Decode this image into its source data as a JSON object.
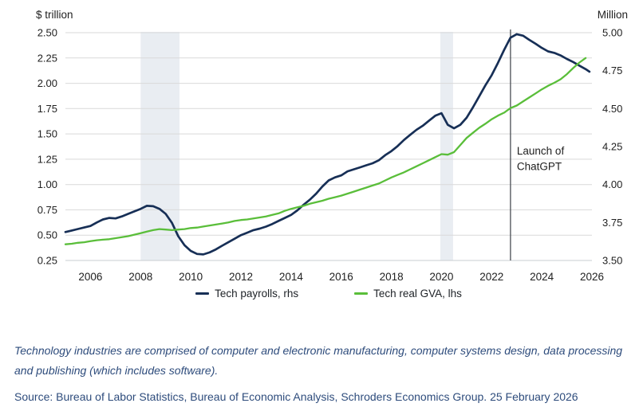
{
  "page": {
    "footnote": "Technology industries are comprised of computer and electronic manufacturing, computer systems design, data processing and publishing (which includes software).",
    "source": "Source: Bureau of Labor Statistics, Bureau of Economic Analysis, Schroders Economics Group. 25 February 2026"
  },
  "colors": {
    "navy_line": "#172f56",
    "green_line": "#5abe3a",
    "recession_band": "#e9edf2",
    "gridline": "#d9d9d9",
    "axis_line": "#c9cdd2",
    "annotation_line": "#4a4f55",
    "tick_text": "#212121",
    "note_text": "#2e4c7c"
  },
  "chart_data": {
    "type": "line",
    "title": "",
    "grid": true,
    "legend_position": "bottom",
    "left_axis": {
      "title": "$ trillion",
      "min": 0.25,
      "max": 2.5,
      "tick_step": 0.25,
      "ticks": [
        "2.50",
        "2.25",
        "2.00",
        "1.75",
        "1.50",
        "1.25",
        "1.00",
        "0.75",
        "0.50",
        "0.25"
      ]
    },
    "right_axis": {
      "title": "Million",
      "min": 3.5,
      "max": 5.0,
      "tick_step": 0.25,
      "ticks": [
        "5.00",
        "4.75",
        "4.50",
        "4.25",
        "4.00",
        "3.75",
        "3.50"
      ]
    },
    "x_axis": {
      "min": 2005,
      "max": 2026,
      "ticks": [
        2006,
        2008,
        2010,
        2012,
        2014,
        2016,
        2018,
        2020,
        2022,
        2024,
        2026
      ]
    },
    "recession_bands": [
      {
        "from": 2008.0,
        "to": 2009.55
      },
      {
        "from": 2019.95,
        "to": 2020.46
      }
    ],
    "annotation": {
      "x": 2022.75,
      "lines": [
        "Launch of",
        "ChatGPT"
      ]
    },
    "series": [
      {
        "name": "Tech payrolls, rhs",
        "axis": "right",
        "unit": "million",
        "points": [
          [
            2005.0,
            3.687
          ],
          [
            2005.25,
            3.697
          ],
          [
            2005.5,
            3.707
          ],
          [
            2005.75,
            3.717
          ],
          [
            2006.0,
            3.727
          ],
          [
            2006.25,
            3.75
          ],
          [
            2006.5,
            3.77
          ],
          [
            2006.75,
            3.78
          ],
          [
            2007.0,
            3.777
          ],
          [
            2007.25,
            3.79
          ],
          [
            2007.5,
            3.807
          ],
          [
            2007.75,
            3.823
          ],
          [
            2008.0,
            3.84
          ],
          [
            2008.25,
            3.86
          ],
          [
            2008.5,
            3.857
          ],
          [
            2008.75,
            3.84
          ],
          [
            2009.0,
            3.807
          ],
          [
            2009.25,
            3.747
          ],
          [
            2009.5,
            3.66
          ],
          [
            2009.75,
            3.6
          ],
          [
            2010.0,
            3.563
          ],
          [
            2010.25,
            3.543
          ],
          [
            2010.5,
            3.54
          ],
          [
            2010.75,
            3.553
          ],
          [
            2011.0,
            3.573
          ],
          [
            2011.25,
            3.597
          ],
          [
            2011.5,
            3.62
          ],
          [
            2011.75,
            3.643
          ],
          [
            2012.0,
            3.667
          ],
          [
            2012.25,
            3.683
          ],
          [
            2012.5,
            3.7
          ],
          [
            2012.75,
            3.71
          ],
          [
            2013.0,
            3.723
          ],
          [
            2013.25,
            3.74
          ],
          [
            2013.5,
            3.76
          ],
          [
            2013.75,
            3.78
          ],
          [
            2014.0,
            3.8
          ],
          [
            2014.25,
            3.83
          ],
          [
            2014.5,
            3.867
          ],
          [
            2014.75,
            3.9
          ],
          [
            2015.0,
            3.94
          ],
          [
            2015.25,
            3.987
          ],
          [
            2015.5,
            4.027
          ],
          [
            2015.75,
            4.047
          ],
          [
            2016.0,
            4.06
          ],
          [
            2016.25,
            4.087
          ],
          [
            2016.5,
            4.1
          ],
          [
            2016.75,
            4.113
          ],
          [
            2017.0,
            4.127
          ],
          [
            2017.25,
            4.14
          ],
          [
            2017.5,
            4.16
          ],
          [
            2017.75,
            4.193
          ],
          [
            2018.0,
            4.22
          ],
          [
            2018.25,
            4.253
          ],
          [
            2018.5,
            4.293
          ],
          [
            2018.75,
            4.327
          ],
          [
            2019.0,
            4.36
          ],
          [
            2019.25,
            4.387
          ],
          [
            2019.5,
            4.42
          ],
          [
            2019.75,
            4.453
          ],
          [
            2020.0,
            4.47
          ],
          [
            2020.25,
            4.393
          ],
          [
            2020.5,
            4.37
          ],
          [
            2020.75,
            4.393
          ],
          [
            2021.0,
            4.44
          ],
          [
            2021.25,
            4.507
          ],
          [
            2021.5,
            4.58
          ],
          [
            2021.75,
            4.653
          ],
          [
            2022.0,
            4.72
          ],
          [
            2022.25,
            4.8
          ],
          [
            2022.5,
            4.887
          ],
          [
            2022.75,
            4.967
          ],
          [
            2023.0,
            4.99
          ],
          [
            2023.25,
            4.98
          ],
          [
            2023.5,
            4.953
          ],
          [
            2023.75,
            4.927
          ],
          [
            2024.0,
            4.9
          ],
          [
            2024.25,
            4.877
          ],
          [
            2024.5,
            4.867
          ],
          [
            2024.75,
            4.85
          ],
          [
            2025.0,
            4.827
          ],
          [
            2025.25,
            4.807
          ],
          [
            2025.5,
            4.783
          ],
          [
            2025.75,
            4.76
          ],
          [
            2025.9,
            4.743
          ]
        ]
      },
      {
        "name": "Tech real GVA, lhs",
        "axis": "left",
        "unit": "$ trillion",
        "points": [
          [
            2005.0,
            0.41
          ],
          [
            2005.25,
            0.415
          ],
          [
            2005.5,
            0.425
          ],
          [
            2005.75,
            0.43
          ],
          [
            2006.0,
            0.44
          ],
          [
            2006.25,
            0.45
          ],
          [
            2006.5,
            0.455
          ],
          [
            2006.75,
            0.46
          ],
          [
            2007.0,
            0.47
          ],
          [
            2007.25,
            0.48
          ],
          [
            2007.5,
            0.49
          ],
          [
            2007.75,
            0.505
          ],
          [
            2008.0,
            0.52
          ],
          [
            2008.25,
            0.535
          ],
          [
            2008.5,
            0.55
          ],
          [
            2008.75,
            0.56
          ],
          [
            2009.0,
            0.555
          ],
          [
            2009.25,
            0.55
          ],
          [
            2009.5,
            0.555
          ],
          [
            2009.75,
            0.56
          ],
          [
            2010.0,
            0.57
          ],
          [
            2010.25,
            0.575
          ],
          [
            2010.5,
            0.585
          ],
          [
            2010.75,
            0.595
          ],
          [
            2011.0,
            0.605
          ],
          [
            2011.25,
            0.615
          ],
          [
            2011.5,
            0.625
          ],
          [
            2011.75,
            0.64
          ],
          [
            2012.0,
            0.65
          ],
          [
            2012.25,
            0.655
          ],
          [
            2012.5,
            0.665
          ],
          [
            2012.75,
            0.675
          ],
          [
            2013.0,
            0.685
          ],
          [
            2013.25,
            0.7
          ],
          [
            2013.5,
            0.715
          ],
          [
            2013.75,
            0.74
          ],
          [
            2014.0,
            0.76
          ],
          [
            2014.25,
            0.775
          ],
          [
            2014.5,
            0.79
          ],
          [
            2014.75,
            0.81
          ],
          [
            2015.0,
            0.825
          ],
          [
            2015.25,
            0.84
          ],
          [
            2015.5,
            0.86
          ],
          [
            2015.75,
            0.875
          ],
          [
            2016.0,
            0.89
          ],
          [
            2016.25,
            0.91
          ],
          [
            2016.5,
            0.93
          ],
          [
            2016.75,
            0.95
          ],
          [
            2017.0,
            0.97
          ],
          [
            2017.25,
            0.99
          ],
          [
            2017.5,
            1.01
          ],
          [
            2017.75,
            1.04
          ],
          [
            2018.0,
            1.07
          ],
          [
            2018.25,
            1.095
          ],
          [
            2018.5,
            1.12
          ],
          [
            2018.75,
            1.15
          ],
          [
            2019.0,
            1.18
          ],
          [
            2019.25,
            1.21
          ],
          [
            2019.5,
            1.24
          ],
          [
            2019.75,
            1.27
          ],
          [
            2020.0,
            1.3
          ],
          [
            2020.25,
            1.295
          ],
          [
            2020.5,
            1.32
          ],
          [
            2020.75,
            1.39
          ],
          [
            2021.0,
            1.46
          ],
          [
            2021.25,
            1.51
          ],
          [
            2021.5,
            1.56
          ],
          [
            2021.75,
            1.6
          ],
          [
            2022.0,
            1.645
          ],
          [
            2022.25,
            1.68
          ],
          [
            2022.5,
            1.71
          ],
          [
            2022.75,
            1.755
          ],
          [
            2023.0,
            1.78
          ],
          [
            2023.25,
            1.82
          ],
          [
            2023.5,
            1.86
          ],
          [
            2023.75,
            1.9
          ],
          [
            2024.0,
            1.94
          ],
          [
            2024.25,
            1.975
          ],
          [
            2024.5,
            2.005
          ],
          [
            2024.75,
            2.04
          ],
          [
            2025.0,
            2.09
          ],
          [
            2025.25,
            2.15
          ],
          [
            2025.5,
            2.205
          ],
          [
            2025.75,
            2.25
          ]
        ]
      }
    ]
  }
}
